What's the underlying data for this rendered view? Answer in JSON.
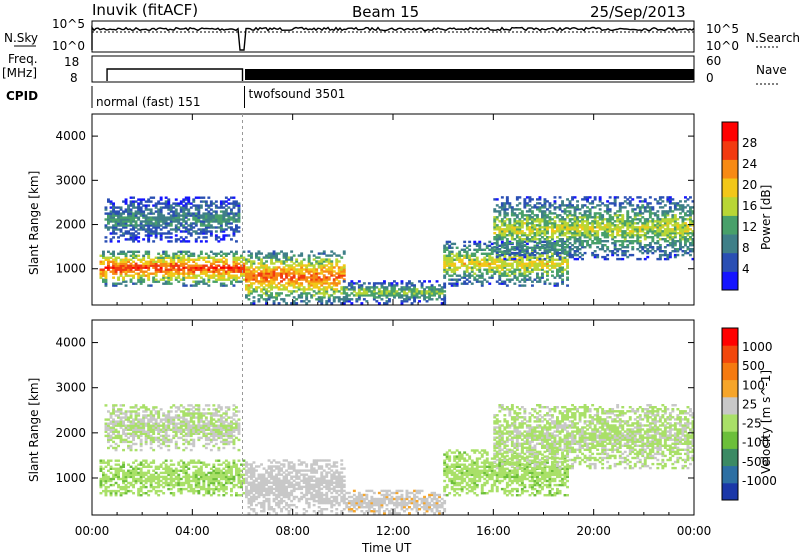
{
  "header": {
    "station": "Inuvik (fitACF)",
    "beam": "Beam 15",
    "date": "25/Sep/2013"
  },
  "panels_top": {
    "nsky_label": "N.Sky",
    "nsky_ticks": [
      "10^5",
      "10^0"
    ],
    "nsearch_label": "N.Search",
    "freq_label_1": "Freq.",
    "freq_label_2": "[MHz]",
    "freq_ticks": [
      "18",
      "8"
    ],
    "nave_label": "Nave",
    "nave_ticks": [
      "60",
      "0"
    ],
    "cpid_label": "CPID",
    "modes": [
      {
        "name": "normal (fast) 151",
        "start_hour": 0.6,
        "end_hour": 6.0
      },
      {
        "name": "twofsound 3501",
        "start_hour": 6.1,
        "end_hour": 24.0
      }
    ]
  },
  "chart_data": [
    {
      "type": "heatmap",
      "parameter": "Power",
      "ylabel": "Slant Range [km]",
      "yticks": [
        "4000",
        "3000",
        "2000",
        "1000"
      ],
      "ylim": [
        180,
        4500
      ],
      "colorbar": {
        "label": "Power [dB]",
        "ticks": [
          "28",
          "24",
          "20",
          "16",
          "12",
          "8",
          "4"
        ],
        "range": [
          0,
          30
        ]
      },
      "colors": [
        "#1414ff",
        "#2a4fb3",
        "#3f7f88",
        "#48a06a",
        "#b8d635",
        "#f2c718",
        "#f78a14",
        "#f23a10",
        "#ff0000"
      ],
      "echo_bands": [
        {
          "t_start": 0.3,
          "t_end": 6.0,
          "r_low": 600,
          "r_high": 1400,
          "value": 26
        },
        {
          "t_start": 0.5,
          "t_end": 5.8,
          "r_low": 1600,
          "r_high": 2600,
          "value": 10
        },
        {
          "t_start": 6.1,
          "t_end": 10.0,
          "r_low": 200,
          "r_high": 1400,
          "value": 24
        },
        {
          "t_start": 10.0,
          "t_end": 14.0,
          "r_low": 200,
          "r_high": 700,
          "value": 14
        },
        {
          "t_start": 14.0,
          "t_end": 19.0,
          "r_low": 600,
          "r_high": 1600,
          "value": 18
        },
        {
          "t_start": 16.0,
          "t_end": 24.0,
          "r_low": 1200,
          "r_high": 2600,
          "value": 16
        }
      ]
    },
    {
      "type": "heatmap",
      "parameter": "Velocity",
      "ylabel": "Slant Range [km]",
      "yticks": [
        "4000",
        "3000",
        "2000",
        "1000"
      ],
      "ylim": [
        180,
        4500
      ],
      "colorbar": {
        "label": "Velocity [m s^-1]",
        "ticks": [
          "1000",
          "500",
          "100",
          "25",
          "-25",
          "-100",
          "-500",
          "-1000"
        ],
        "range": [
          -1000,
          1000
        ]
      },
      "colors": [
        "#1a37a8",
        "#2c6fa3",
        "#3b8a64",
        "#6cbf3a",
        "#a9e068",
        "#c8c8c8",
        "#f6a52a",
        "#f57a10",
        "#f2470c",
        "#ff0000"
      ],
      "echo_bands": [
        {
          "t_start": 0.3,
          "t_end": 6.0,
          "r_low": 600,
          "r_high": 1400,
          "value": -150
        },
        {
          "t_start": 0.5,
          "t_end": 5.8,
          "r_low": 1600,
          "r_high": 2600,
          "value": 0
        },
        {
          "t_start": 6.1,
          "t_end": 10.0,
          "r_low": 200,
          "r_high": 1400,
          "value": 60
        },
        {
          "t_start": 10.0,
          "t_end": 14.0,
          "r_low": 200,
          "r_high": 700,
          "value": 150
        },
        {
          "t_start": 14.0,
          "t_end": 19.0,
          "r_low": 600,
          "r_high": 1600,
          "value": -150
        },
        {
          "t_start": 16.0,
          "t_end": 24.0,
          "r_low": 1200,
          "r_high": 2600,
          "value": -10
        }
      ]
    }
  ],
  "xaxis": {
    "xlabel": "Time UT",
    "ticks": [
      "00:00",
      "04:00",
      "08:00",
      "12:00",
      "16:00",
      "20:00",
      "00:00"
    ],
    "xlim": [
      0,
      24
    ]
  }
}
